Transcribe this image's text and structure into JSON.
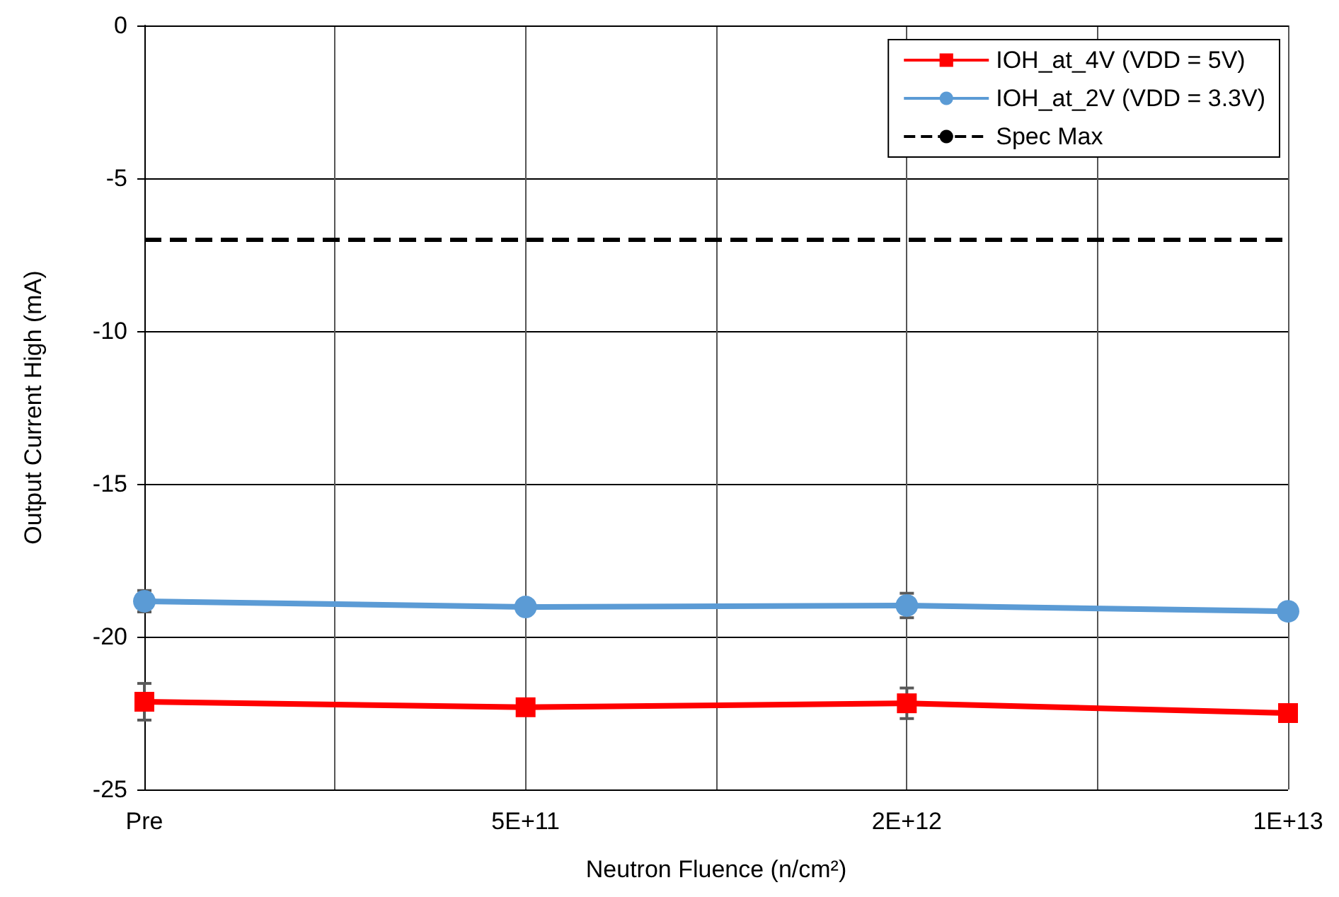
{
  "chart_data": {
    "type": "line",
    "xlabel": "Neutron Fluence (n/cm²)",
    "ylabel": "Output Current High (mA)",
    "categories": [
      "Pre",
      "5E+11",
      "2E+12",
      "1E+13"
    ],
    "series": [
      {
        "name": "IOH_at_4V (VDD = 5V)",
        "color": "#ff0000",
        "marker": "square",
        "values": [
          -22.13,
          -22.31,
          -22.18,
          -22.5
        ],
        "errors": [
          0.6,
          null,
          0.5,
          null
        ]
      },
      {
        "name": "IOH_at_2V (VDD = 3.3V)",
        "color": "#5b9bd5",
        "marker": "circle",
        "values": [
          -18.84,
          -19.03,
          -18.98,
          -19.17
        ],
        "errors": [
          0.35,
          null,
          0.4,
          null
        ]
      }
    ],
    "ref_lines": [
      {
        "axis": "y",
        "value": -7,
        "label": "Spec Max",
        "color": "#000000",
        "line_style": "dashed"
      }
    ],
    "ylim": [
      -25,
      0
    ],
    "yticks": [
      -25,
      -20,
      -15,
      -10,
      -5,
      0
    ],
    "grid": true,
    "legend": "top right",
    "line_style": "solid"
  }
}
